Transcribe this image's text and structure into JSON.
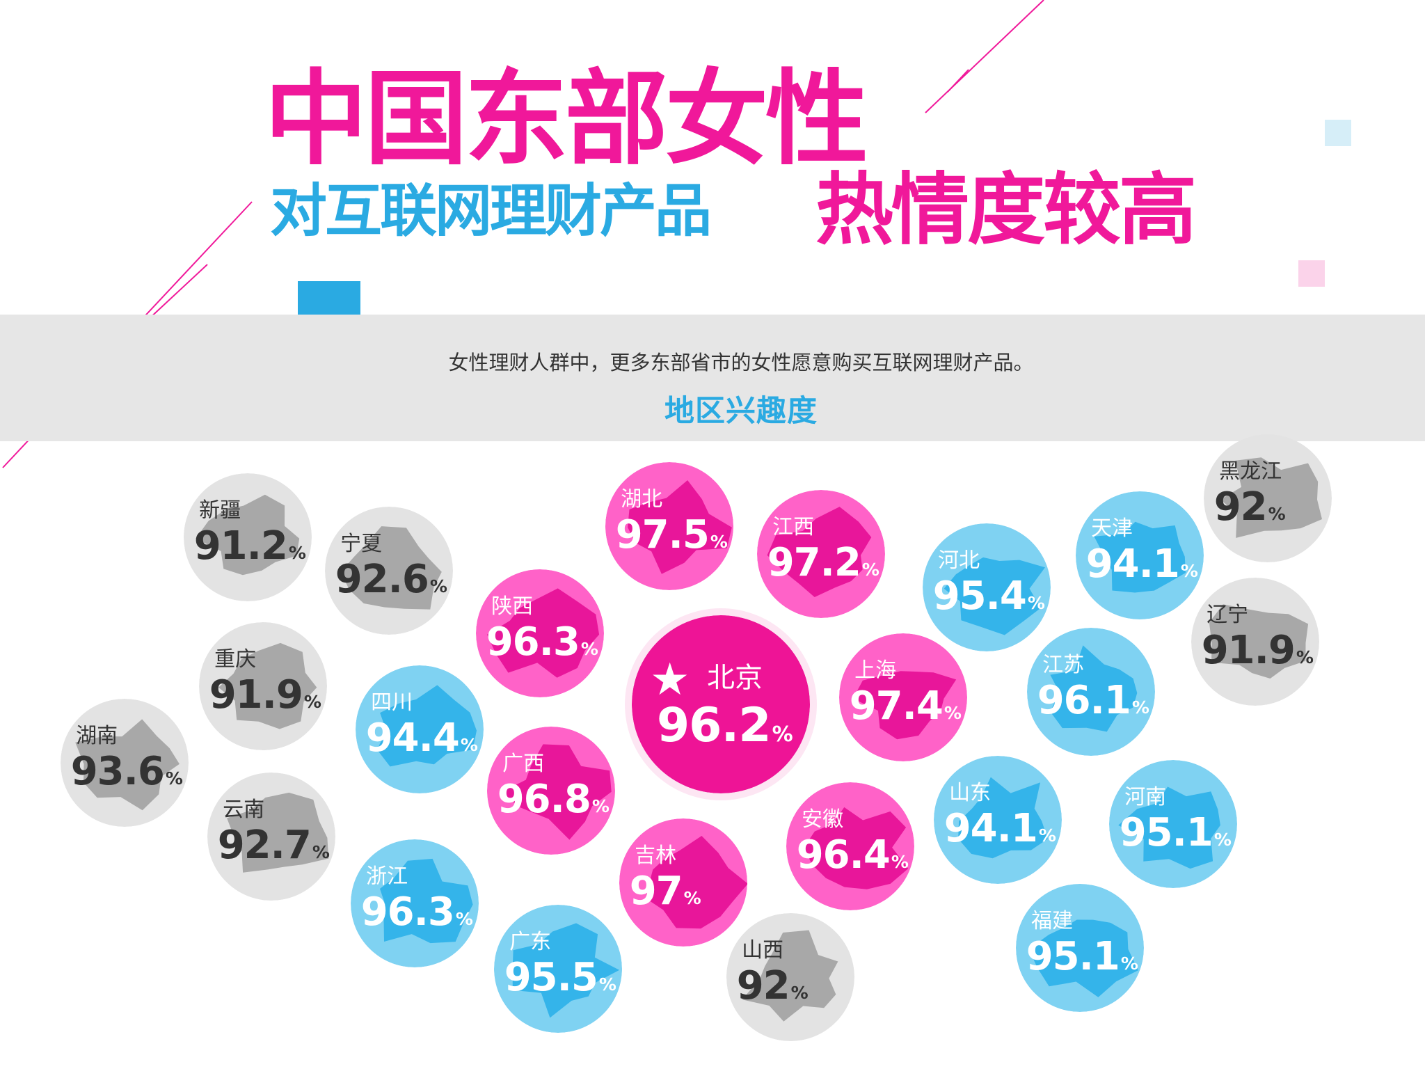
{
  "title": {
    "line1": "中国东部女性",
    "line2_part1": "对互联网理财产品",
    "line2_part2": "热情度较高"
  },
  "subtitle": "女性理财人群中，更多东部省市的女性愿意购买互联网理财产品。",
  "section_label": "地区兴趣度",
  "colors": {
    "pink": "#f0189a",
    "pink_light": "#ff6ccd",
    "blue": "#2aaae2",
    "blue_light": "#7fd0f0",
    "gray": "#e0e0e0",
    "band": "#e6e6e6"
  },
  "percent_sign": "%",
  "star_icon": "star-icon",
  "regions": [
    {
      "name": "新疆",
      "value": "91.2",
      "color": "gray"
    },
    {
      "name": "宁夏",
      "value": "92.6",
      "color": "gray"
    },
    {
      "name": "重庆",
      "value": "91.9",
      "color": "gray"
    },
    {
      "name": "湖南",
      "value": "93.6",
      "color": "gray"
    },
    {
      "name": "云南",
      "value": "92.7",
      "color": "gray"
    },
    {
      "name": "四川",
      "value": "94.4",
      "color": "blue"
    },
    {
      "name": "浙江",
      "value": "96.3",
      "color": "blue"
    },
    {
      "name": "陕西",
      "value": "96.3",
      "color": "pink"
    },
    {
      "name": "广西",
      "value": "96.8",
      "color": "pink"
    },
    {
      "name": "广东",
      "value": "95.5",
      "color": "blue"
    },
    {
      "name": "湖北",
      "value": "97.5",
      "color": "pink"
    },
    {
      "name": "北京",
      "value": "96.2",
      "color": "pink"
    },
    {
      "name": "吉林",
      "value": "97",
      "color": "pink"
    },
    {
      "name": "山西",
      "value": "92",
      "color": "gray"
    },
    {
      "name": "江西",
      "value": "97.2",
      "color": "pink"
    },
    {
      "name": "上海",
      "value": "97.4",
      "color": "pink"
    },
    {
      "name": "安徽",
      "value": "96.4",
      "color": "pink"
    },
    {
      "name": "河北",
      "value": "95.4",
      "color": "blue"
    },
    {
      "name": "山东",
      "value": "94.1",
      "color": "blue"
    },
    {
      "name": "天津",
      "value": "94.1",
      "color": "blue"
    },
    {
      "name": "江苏",
      "value": "96.1",
      "color": "blue"
    },
    {
      "name": "河南",
      "value": "95.1",
      "color": "blue"
    },
    {
      "name": "福建",
      "value": "95.1",
      "color": "blue"
    },
    {
      "name": "黑龙江",
      "value": "92",
      "color": "gray"
    },
    {
      "name": "辽宁",
      "value": "91.9",
      "color": "gray"
    }
  ]
}
